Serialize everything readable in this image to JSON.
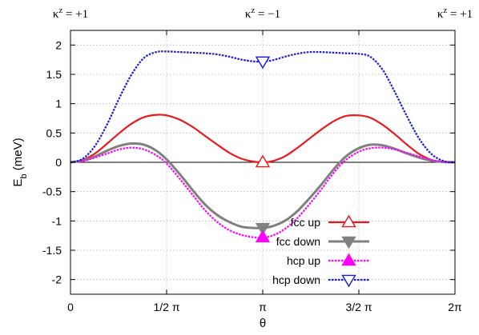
{
  "chart_data": {
    "type": "line",
    "xlabel": "θ",
    "ylabel": "E_b (meV)",
    "ylabel_main": "E",
    "ylabel_sub": "b",
    "ylabel_rest": " (meV)",
    "xlim": [
      0,
      6.2832
    ],
    "ylim": [
      -2.25,
      2.25
    ],
    "grid": true,
    "legend_position": "bottom-right",
    "x_ticks": [
      {
        "value": 0,
        "label": "0"
      },
      {
        "value": 1.5708,
        "label": "1/2 π"
      },
      {
        "value": 3.1416,
        "label": "π"
      },
      {
        "value": 4.7124,
        "label": "3/2 π"
      },
      {
        "value": 6.2832,
        "label": "2π"
      }
    ],
    "y_ticks": [
      {
        "value": 2,
        "label": "2"
      },
      {
        "value": 1.5,
        "label": "1.5"
      },
      {
        "value": 1,
        "label": "1"
      },
      {
        "value": 0.5,
        "label": "0.5"
      },
      {
        "value": 0,
        "label": "0"
      },
      {
        "value": -0.5,
        "label": "-0.5"
      },
      {
        "value": -1,
        "label": "-1"
      },
      {
        "value": -1.5,
        "label": "-1.5"
      },
      {
        "value": -2,
        "label": "-2"
      }
    ],
    "top_labels": [
      {
        "value": 0,
        "text": "κ^z = +1",
        "base": "κ",
        "sup": "z",
        "rest": " = +1"
      },
      {
        "value": 3.1416,
        "text": "κ^z = −1",
        "base": "κ",
        "sup": "z",
        "rest": " = −1"
      },
      {
        "value": 6.2832,
        "text": "κ^z = +1",
        "base": "κ",
        "sup": "z",
        "rest": " = +1"
      }
    ],
    "zero_line": 0,
    "series": [
      {
        "name": "fcc up",
        "color": "#e8191c",
        "dash": "solid",
        "marker": "triangle-up-open",
        "marker_point": [
          3.1416,
          0.0
        ],
        "x": [
          0,
          0.2,
          0.4,
          0.6,
          0.8,
          1.0,
          1.2,
          1.4,
          1.5708,
          1.8,
          2.0,
          2.2,
          2.4,
          2.6,
          2.8,
          3.0,
          3.1416,
          3.3,
          3.5,
          3.7,
          3.9,
          4.1,
          4.3,
          4.5,
          4.7124,
          4.9,
          5.1,
          5.3,
          5.5,
          5.7,
          5.9,
          6.1,
          6.2832
        ],
        "values": [
          0.0,
          0.04,
          0.15,
          0.32,
          0.5,
          0.66,
          0.77,
          0.81,
          0.8,
          0.72,
          0.6,
          0.45,
          0.3,
          0.16,
          0.06,
          0.01,
          0.0,
          0.02,
          0.1,
          0.24,
          0.4,
          0.56,
          0.7,
          0.79,
          0.8,
          0.76,
          0.64,
          0.48,
          0.3,
          0.14,
          0.04,
          0.005,
          0.0
        ]
      },
      {
        "name": "fcc down",
        "color": "#808080",
        "dash": "solid",
        "marker": "triangle-down-filled",
        "marker_point": [
          3.1416,
          -1.12
        ],
        "x": [
          0,
          0.2,
          0.4,
          0.6,
          0.8,
          1.0,
          1.2,
          1.4,
          1.5708,
          1.8,
          2.0,
          2.2,
          2.4,
          2.6,
          2.8,
          3.0,
          3.1416,
          3.3,
          3.5,
          3.7,
          3.9,
          4.1,
          4.3,
          4.5,
          4.7124,
          4.9,
          5.1,
          5.3,
          5.5,
          5.7,
          5.9,
          6.1,
          6.2832
        ],
        "values": [
          0.0,
          0.03,
          0.1,
          0.2,
          0.28,
          0.32,
          0.3,
          0.2,
          0.05,
          -0.22,
          -0.48,
          -0.72,
          -0.9,
          -1.02,
          -1.1,
          -1.12,
          -1.12,
          -1.09,
          -1.0,
          -0.84,
          -0.62,
          -0.38,
          -0.12,
          0.1,
          0.24,
          0.3,
          0.29,
          0.23,
          0.15,
          0.08,
          0.03,
          0.005,
          0.0
        ]
      },
      {
        "name": "hcp up",
        "color": "#ff00ff",
        "dash": "dotted",
        "marker": "triangle-up-filled",
        "marker_point": [
          3.1416,
          -1.28
        ],
        "x": [
          0,
          0.2,
          0.4,
          0.6,
          0.8,
          1.0,
          1.2,
          1.4,
          1.5708,
          1.8,
          2.0,
          2.2,
          2.4,
          2.6,
          2.8,
          3.0,
          3.1416,
          3.3,
          3.5,
          3.7,
          3.9,
          4.1,
          4.3,
          4.5,
          4.7124,
          4.9,
          5.1,
          5.3,
          5.5,
          5.7,
          5.9,
          6.1,
          6.2832
        ],
        "values": [
          0.0,
          0.02,
          0.08,
          0.15,
          0.22,
          0.25,
          0.22,
          0.12,
          -0.02,
          -0.3,
          -0.56,
          -0.82,
          -1.02,
          -1.16,
          -1.24,
          -1.28,
          -1.28,
          -1.25,
          -1.14,
          -0.96,
          -0.72,
          -0.46,
          -0.18,
          0.04,
          0.18,
          0.24,
          0.25,
          0.22,
          0.16,
          0.1,
          0.04,
          0.008,
          0.0
        ]
      },
      {
        "name": "hcp down",
        "color": "#1a1ad8",
        "dash": "dotted",
        "marker": "triangle-down-open",
        "marker_point": [
          3.1416,
          1.72
        ],
        "x": [
          0,
          0.2,
          0.4,
          0.6,
          0.8,
          1.0,
          1.2,
          1.4,
          1.5708,
          1.8,
          2.0,
          2.2,
          2.4,
          2.6,
          2.8,
          3.0,
          3.1416,
          3.3,
          3.5,
          3.7,
          3.9,
          4.1,
          4.3,
          4.5,
          4.7124,
          4.9,
          5.1,
          5.3,
          5.5,
          5.7,
          5.9,
          6.1,
          6.2832
        ],
        "values": [
          0.0,
          0.06,
          0.28,
          0.65,
          1.1,
          1.5,
          1.78,
          1.88,
          1.89,
          1.88,
          1.87,
          1.86,
          1.84,
          1.8,
          1.75,
          1.72,
          1.72,
          1.74,
          1.8,
          1.85,
          1.88,
          1.88,
          1.87,
          1.86,
          1.85,
          1.8,
          1.58,
          1.2,
          0.78,
          0.4,
          0.14,
          0.02,
          0.0
        ]
      }
    ]
  }
}
